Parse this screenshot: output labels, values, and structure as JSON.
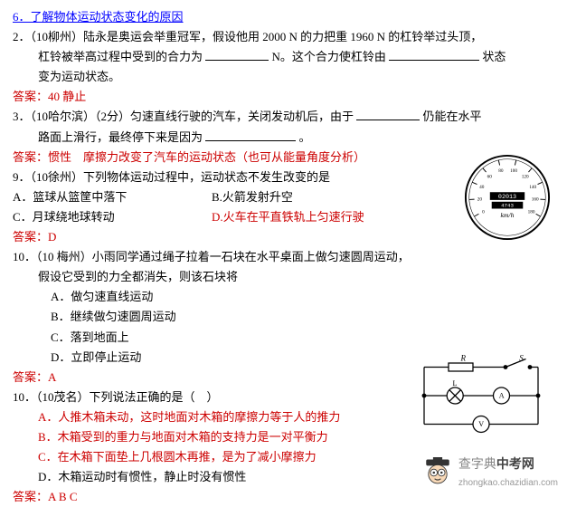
{
  "heading": "6．了解物体运动状态变化的原因",
  "q2": {
    "line1_a": "2．（10柳州）陆永是奥运会举重冠军，假设他用 2000 N 的力把重 1960 N 的杠铃举过头顶，",
    "line2_a": "杠铃被举高过程中受到的合力为",
    "line2_b": "N。这个合力使杠铃由",
    "line2_c": "状态",
    "line3": "变为运动状态。",
    "ans": "答案：40  静止"
  },
  "q3": {
    "line1_a": "3．（10哈尔滨）（2分）匀速直线行驶的汽车，关闭发动机后，由于",
    "line1_b": "仍能在水平",
    "line2_a": "路面上滑行，最终停下来是因为",
    "line2_b": "。",
    "ans": "答案：惯性　摩擦力改变了汽车的运动状态（也可从能量角度分析）"
  },
  "q9": {
    "stem": "9．（10徐州）下列物体运动过程中，运动状态不发生改变的是",
    "A": "A．篮球从篮筐中落下",
    "B": "B.火箭发射升空",
    "C": "C．月球绕地球转动",
    "D": "D.火车在平直铁轨上匀速行驶",
    "ans": "答案：D"
  },
  "q10a": {
    "stem": "10．（10 梅州）小雨同学通过绳子拉着一石块在水平桌面上做匀速圆周运动，",
    "stem2": "假设它受到的力全都消失，则该石块将",
    "A": "A．做匀速直线运动",
    "B": "B．继续做匀速圆周运动",
    "C": "C．落到地面上",
    "D": "D．立即停止运动",
    "ans": "答案：A"
  },
  "q10b": {
    "stem": "10．（10茂名）下列说法正确的是（　）",
    "A": "A．人推木箱未动，这时地面对木箱的摩擦力等于人的推力",
    "B": "B．木箱受到的重力与地面对木箱的支持力是一对平衡力",
    "C": "C．在木箱下面垫上几根圆木再推，是为了减小摩擦力",
    "D": "D．木箱运动时有惯性，静止时没有惯性",
    "ans": "答案：A B C"
  },
  "gauge": {
    "unit": "km/h",
    "odo1": "02013",
    "odo2": "4743",
    "ticks": [
      "0",
      "20",
      "40",
      "60",
      "80",
      "100",
      "120",
      "140",
      "160",
      "180"
    ]
  },
  "circuit": {
    "labels": {
      "R": "R",
      "S": "S",
      "L": "L",
      "A": "A",
      "V": "V"
    }
  },
  "watermark": {
    "cn_a": "查字典",
    "cn_b": "中考网",
    "en": "zhongkao.chazidian.com"
  },
  "colors": {
    "heading": "#0000ff",
    "answer": "#cc0000",
    "text": "#000000",
    "bg": "#ffffff"
  }
}
